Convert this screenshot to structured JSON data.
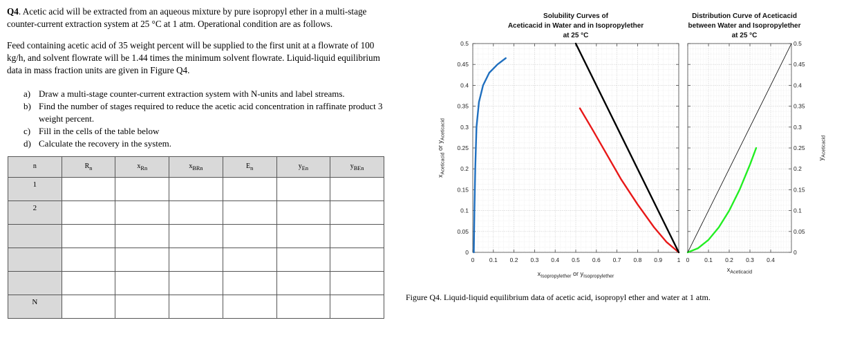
{
  "question": {
    "number": "Q4",
    "intro": ". Acetic acid will be extracted from an aqueous mixture by pure isopropyl ether in a multi-stage counter-current extraction system at 25 °C at 1 atm. Operational condition are as follows.",
    "feed": "Feed containing acetic acid of 35 weight percent will be supplied to the first unit at a flowrate of 100 kg/h, and solvent flowrate will be 1.44 times the minimum solvent flowrate. Liquid-liquid equilibrium data in mass fraction units are given in Figure Q4.",
    "tasks": [
      {
        "label": "a)",
        "text": "Draw a multi-stage counter-current extraction system with N-units and label streams."
      },
      {
        "label": "b)",
        "text": "Find the number of stages required to reduce the acetic acid concentration in raffinate product 3 weight percent."
      },
      {
        "label": "c)",
        "text": "Fill in the cells of the table below"
      },
      {
        "label": "d)",
        "text": "Calculate the recovery in the system."
      }
    ]
  },
  "table": {
    "headers": [
      {
        "main": "n",
        "sub": ""
      },
      {
        "main": "R",
        "sub": "n"
      },
      {
        "main": "x",
        "sub": "Rn"
      },
      {
        "main": "x",
        "sub": "BRn"
      },
      {
        "main": "E",
        "sub": "n"
      },
      {
        "main": "y",
        "sub": "En"
      },
      {
        "main": "y",
        "sub": "BEn"
      }
    ],
    "row_labels": [
      "1",
      "2",
      "",
      "",
      "",
      "N"
    ]
  },
  "chart_data": [
    {
      "type": "line",
      "title": "Solubility Curves of Aceticacid in Water and in Isopropylether at 25 °C",
      "title_lines": [
        "Solubility Curves of",
        "Aceticacid in Water and in Isopropylether",
        "at 25 °C"
      ],
      "xlabel_parts": {
        "x": "x",
        "xsub": "Isopropylether",
        "or": "or",
        "y": "y",
        "ysub": "Isopropylether"
      },
      "ylabel_parts": {
        "x": "x",
        "xsub": "Aceticacid",
        "or": "or",
        "y": "y",
        "ysub": "Aceticacid"
      },
      "xlim": [
        0,
        1
      ],
      "ylim": [
        0,
        0.5
      ],
      "xticks": [
        0,
        0.1,
        0.2,
        0.3,
        0.4,
        0.5,
        0.6,
        0.7,
        0.8,
        0.9,
        1
      ],
      "xtick_labels": [
        "0",
        "0.1",
        "0.2",
        "0.3",
        "0.4",
        "0.5",
        "0.6",
        "0.7",
        "0.8",
        "0.9",
        "1"
      ],
      "yticks": [
        0,
        0.05,
        0.1,
        0.15,
        0.2,
        0.25,
        0.3,
        0.35,
        0.4,
        0.45,
        0.5
      ],
      "ytick_labels": [
        "0",
        "0.05",
        "0.1",
        "0.15",
        "0.2",
        "0.25",
        "0.3",
        "0.35",
        "0.4",
        "0.45",
        "0.5"
      ],
      "grid": true,
      "series": [
        {
          "color": "#1f6fbf",
          "x": [
            0.005,
            0.008,
            0.012,
            0.018,
            0.03,
            0.05,
            0.08,
            0.12,
            0.16
          ],
          "y": [
            0.0,
            0.1,
            0.2,
            0.3,
            0.36,
            0.4,
            0.43,
            0.45,
            0.465
          ]
        },
        {
          "color": "#e81818",
          "x": [
            0.52,
            0.58,
            0.65,
            0.72,
            0.8,
            0.88,
            0.94,
            1.0
          ],
          "y": [
            0.345,
            0.295,
            0.235,
            0.175,
            0.115,
            0.06,
            0.025,
            0.0
          ]
        },
        {
          "color": "#000000",
          "x": [
            0.5,
            1.0
          ],
          "y": [
            0.5,
            0.0
          ]
        }
      ]
    },
    {
      "type": "line",
      "title": "Distribution Curve of Aceticacid between Water and Isopropylether at 25 °C",
      "title_lines": [
        "Distribution Curve of Aceticacid",
        "between Water and Isopropylether",
        "at 25 °C"
      ],
      "xlabel_parts": {
        "x": "x",
        "xsub": "Aceticacid"
      },
      "ylabel_parts": {
        "y": "y",
        "ysub": "Aceticacid"
      },
      "xlim": [
        0,
        0.5
      ],
      "ylim": [
        0,
        0.5
      ],
      "xticks": [
        0,
        0.1,
        0.2,
        0.3,
        0.4
      ],
      "xtick_labels": [
        "0",
        "0.1",
        "0.2",
        "0.3",
        "0.4"
      ],
      "yticks": [
        0,
        0.05,
        0.1,
        0.15,
        0.2,
        0.25,
        0.3,
        0.35,
        0.4,
        0.45,
        0.5
      ],
      "ytick_labels": [
        "0",
        "0.05",
        "0.1",
        "0.15",
        "0.2",
        "0.25",
        "0.3",
        "0.35",
        "0.4",
        "0.45",
        "0.5"
      ],
      "grid": true,
      "series": [
        {
          "color": "#22ee22",
          "x": [
            0.0,
            0.05,
            0.1,
            0.15,
            0.2,
            0.25,
            0.3,
            0.33
          ],
          "y": [
            0.0,
            0.01,
            0.03,
            0.06,
            0.1,
            0.15,
            0.21,
            0.25
          ]
        },
        {
          "color": "#000000",
          "x": [
            0.0,
            0.5
          ],
          "y": [
            0.0,
            0.5
          ]
        }
      ]
    }
  ],
  "figure_caption": "Figure Q4. Liquid-liquid equilibrium data of acetic acid, isopropyl ether and water at 1 atm."
}
